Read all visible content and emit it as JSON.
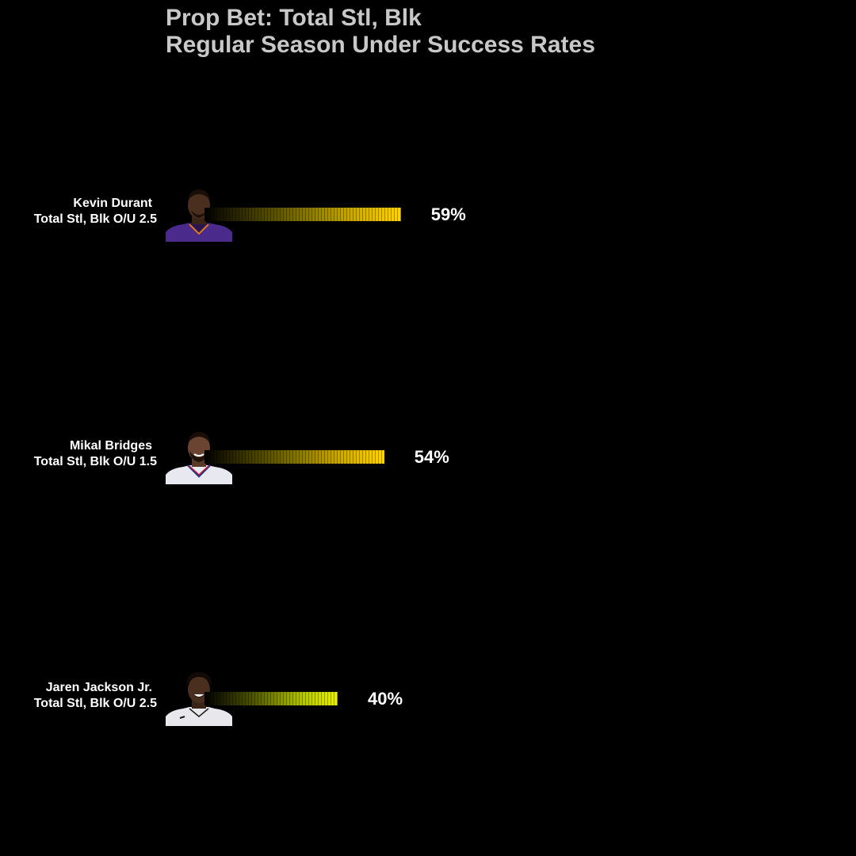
{
  "chart_data": {
    "type": "bar",
    "orientation": "horizontal",
    "title": "Prop Bet: Total Stl, Blk",
    "subtitle": "Regular Season Under Success Rates",
    "categories": [
      "Kevin Durant",
      "Mikal Bridges",
      "Jaren Jackson Jr."
    ],
    "bars": [
      {
        "player": "Kevin Durant",
        "prop": "Total Stl, Blk O/U 2.5",
        "value": 59,
        "label": "59%",
        "bar_color": "#ffd500",
        "jersey_color": "#4a2a8a"
      },
      {
        "player": "Mikal Bridges",
        "prop": "Total Stl, Blk O/U 1.5",
        "value": 54,
        "label": "54%",
        "bar_color": "#ffd500",
        "jersey_color": "#e8e8f0"
      },
      {
        "player": "Jaren Jackson Jr.",
        "prop": "Total Stl, Blk O/U 2.5",
        "value": 40,
        "label": "40%",
        "bar_color": "#ecf000",
        "jersey_color": "#e8e8ec"
      }
    ],
    "xlim": [
      0,
      100
    ],
    "grid": false,
    "legend": "none"
  }
}
